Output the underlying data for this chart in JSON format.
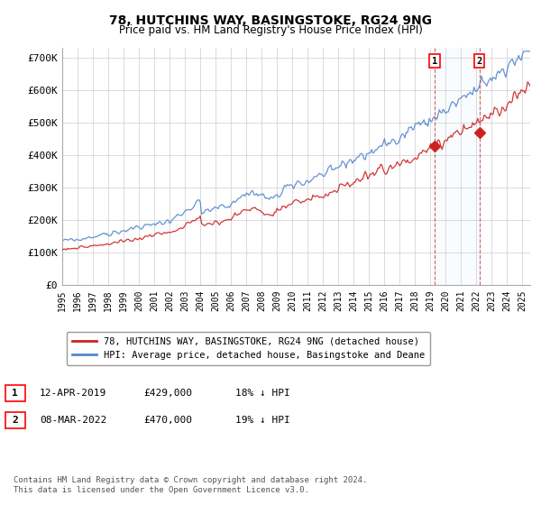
{
  "title": "78, HUTCHINS WAY, BASINGSTOKE, RG24 9NG",
  "subtitle": "Price paid vs. HM Land Registry's House Price Index (HPI)",
  "ylabel_ticks": [
    "£0",
    "£100K",
    "£200K",
    "£300K",
    "£400K",
    "£500K",
    "£600K",
    "£700K"
  ],
  "ytick_values": [
    0,
    100000,
    200000,
    300000,
    400000,
    500000,
    600000,
    700000
  ],
  "ylim": [
    0,
    730000
  ],
  "xlim_start": 1995.0,
  "xlim_end": 2025.5,
  "hpi_color": "#5588cc",
  "hpi_fill_color": "#ddeeff",
  "price_color": "#cc2222",
  "marker1_date": 2019.28,
  "marker1_value": 429000,
  "marker2_date": 2022.18,
  "marker2_value": 470000,
  "legend_entry1": "78, HUTCHINS WAY, BASINGSTOKE, RG24 9NG (detached house)",
  "legend_entry2": "HPI: Average price, detached house, Basingstoke and Deane",
  "annotation1_date": "12-APR-2019",
  "annotation1_price": "£429,000",
  "annotation1_hpi": "18% ↓ HPI",
  "annotation2_date": "08-MAR-2022",
  "annotation2_price": "£470,000",
  "annotation2_hpi": "19% ↓ HPI",
  "footer": "Contains HM Land Registry data © Crown copyright and database right 2024.\nThis data is licensed under the Open Government Licence v3.0.",
  "background_color": "#ffffff",
  "grid_color": "#cccccc"
}
